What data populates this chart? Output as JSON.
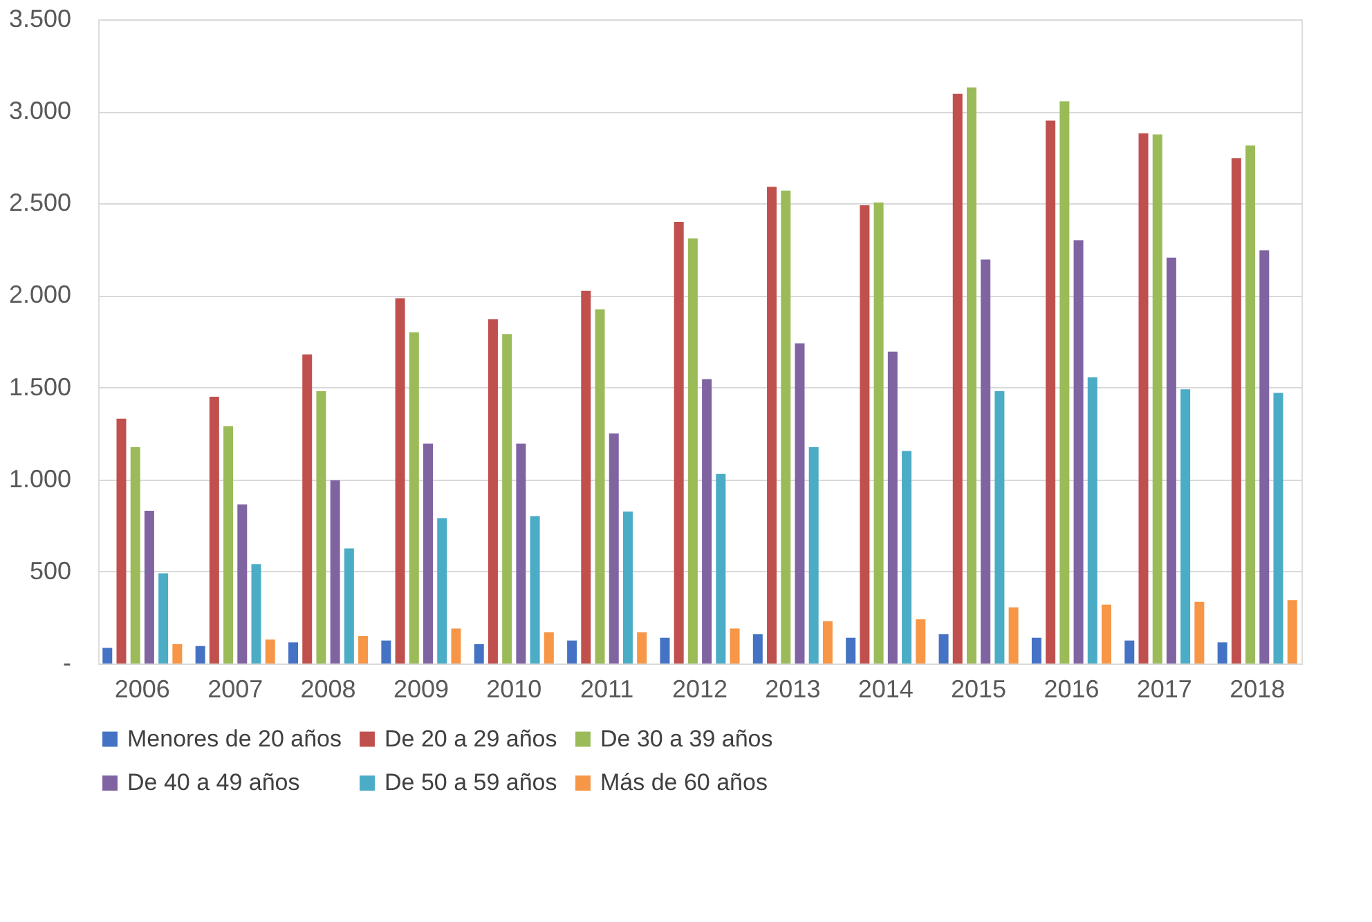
{
  "chart_data": {
    "type": "bar",
    "categories": [
      "2006",
      "2007",
      "2008",
      "2009",
      "2010",
      "2011",
      "2012",
      "2013",
      "2014",
      "2015",
      "2016",
      "2017",
      "2018"
    ],
    "series": [
      {
        "name": "Menores de 20 años",
        "color": "#4472c4",
        "values": [
          85,
          95,
          115,
          125,
          105,
          125,
          140,
          160,
          140,
          160,
          140,
          125,
          115
        ]
      },
      {
        "name": "De 20 a 29 años",
        "color": "#c0504d",
        "values": [
          1330,
          1450,
          1680,
          1985,
          1870,
          2025,
          2400,
          2590,
          2490,
          3095,
          2950,
          2880,
          2745
        ]
      },
      {
        "name": "De 30 a 39 años",
        "color": "#9bbb59",
        "values": [
          1175,
          1290,
          1480,
          1800,
          1790,
          1925,
          2310,
          2570,
          2505,
          3130,
          3055,
          2875,
          2815
        ]
      },
      {
        "name": "De 40 a 49 años",
        "color": "#8064a2",
        "values": [
          830,
          865,
          995,
          1195,
          1195,
          1250,
          1545,
          1740,
          1695,
          2195,
          2300,
          2205,
          2245
        ]
      },
      {
        "name": "De 50 a 59 años",
        "color": "#4bacc6",
        "values": [
          490,
          540,
          625,
          790,
          800,
          825,
          1030,
          1175,
          1155,
          1480,
          1555,
          1490,
          1470
        ]
      },
      {
        "name": "Más de 60 años",
        "color": "#f79646",
        "values": [
          105,
          130,
          150,
          190,
          170,
          170,
          190,
          230,
          240,
          305,
          320,
          335,
          345
        ]
      }
    ],
    "ylim": [
      0,
      3500
    ],
    "yticks": [
      {
        "value": 0,
        "label": "-"
      },
      {
        "value": 500,
        "label": "500"
      },
      {
        "value": 1000,
        "label": "1.000"
      },
      {
        "value": 1500,
        "label": "1.500"
      },
      {
        "value": 2000,
        "label": "2.000"
      },
      {
        "value": 2500,
        "label": "2.500"
      },
      {
        "value": 3000,
        "label": "3.000"
      },
      {
        "value": 3500,
        "label": "3.500"
      }
    ],
    "grid": "y",
    "legend": "bottom"
  }
}
